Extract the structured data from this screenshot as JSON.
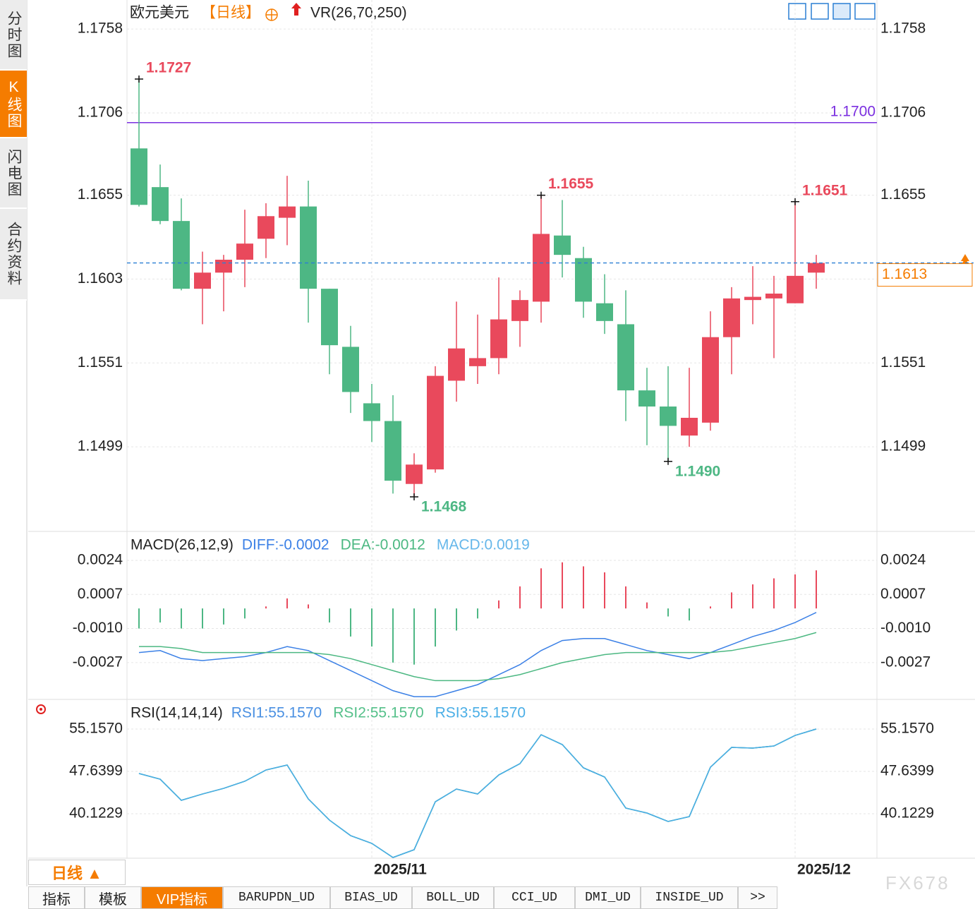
{
  "sidebar": [
    "分时图",
    "K线图",
    "闪电图",
    "合约资料"
  ],
  "header": {
    "symbol": "欧元美元",
    "period": "【日线】",
    "indicator": "VR(26,70,250)"
  },
  "chart_data": [
    {
      "type": "candlestick",
      "categories": [
        null,
        null,
        null,
        null,
        null,
        null,
        null,
        null,
        null,
        null,
        null,
        "2025/11",
        null,
        null,
        null,
        null,
        null,
        null,
        null,
        null,
        null,
        null,
        null,
        null,
        null,
        null,
        null,
        null,
        null,
        null,
        null,
        "2025/12",
        null
      ],
      "open": [
        1.1684,
        1.166,
        1.1639,
        1.1597,
        1.1607,
        1.1615,
        1.1628,
        1.1641,
        1.1648,
        1.1597,
        1.1561,
        1.1526,
        1.1515,
        1.1476,
        1.1485,
        1.154,
        1.1549,
        1.1554,
        1.1577,
        1.1589,
        1.163,
        1.1616,
        1.1588,
        1.1575,
        1.1534,
        1.1524,
        1.1506,
        1.1514,
        1.1567,
        1.159,
        1.1591,
        1.1588,
        1.1607
      ],
      "high": [
        1.1727,
        1.1674,
        1.1653,
        1.162,
        1.1618,
        1.1646,
        1.165,
        1.1667,
        1.1664,
        1.1597,
        1.1574,
        1.1538,
        1.1531,
        1.1495,
        1.1549,
        1.1589,
        1.1581,
        1.1604,
        1.1596,
        1.1655,
        1.1652,
        1.1623,
        1.1606,
        1.1596,
        1.1548,
        1.1549,
        1.1548,
        1.1583,
        1.1598,
        1.1611,
        1.1605,
        1.1651,
        1.1618
      ],
      "low": [
        1.1648,
        1.1637,
        1.1596,
        1.1575,
        1.1583,
        1.1598,
        1.1616,
        1.1624,
        1.1576,
        1.1544,
        1.152,
        1.1502,
        1.147,
        1.1468,
        1.1483,
        1.1527,
        1.1538,
        1.1544,
        1.1561,
        1.1576,
        1.1604,
        1.1579,
        1.1569,
        1.1515,
        1.15,
        1.149,
        1.1499,
        1.1509,
        1.1544,
        1.1575,
        1.1554,
        1.1588,
        1.1597
      ],
      "close": [
        1.1649,
        1.1639,
        1.1597,
        1.1607,
        1.1615,
        1.1625,
        1.1642,
        1.1648,
        1.1597,
        1.1562,
        1.1533,
        1.1515,
        1.1478,
        1.1488,
        1.1543,
        1.156,
        1.1554,
        1.1578,
        1.159,
        1.1631,
        1.1618,
        1.1589,
        1.1577,
        1.1534,
        1.1524,
        1.1512,
        1.1517,
        1.1567,
        1.1591,
        1.1592,
        1.1594,
        1.1605,
        1.1613
      ],
      "up_color": "#e9495c",
      "down_color": "#4db784",
      "ylim": [
        1.1447,
        1.1776
      ],
      "yticks": [
        1.1758,
        1.1706,
        1.1655,
        1.1603,
        1.1551,
        1.1499
      ],
      "reference_line": {
        "value": 1.17,
        "label": "1.1700",
        "color": "#7b2fe0"
      },
      "current_price": 1.1613,
      "high_labels": [
        1.1727,
        1.1655,
        1.1651
      ],
      "low_labels": [
        1.1468,
        {
          "value": 1.149,
          "label": "1.1490"
        }
      ]
    },
    {
      "type": "macd",
      "title": "MACD(26,12,9)",
      "histogram": {
        "name": "MACD:0.0019",
        "color": "#66b7ea",
        "values": [
          -0.001,
          -0.0007,
          -0.001,
          -0.001,
          -0.0008,
          -0.0005,
          0.0001,
          0.0005,
          0.0002,
          -0.0007,
          -0.0014,
          -0.0019,
          -0.0027,
          -0.0028,
          -0.0019,
          -0.0011,
          -0.0005,
          0.0004,
          0.0011,
          0.002,
          0.0023,
          0.0021,
          0.0018,
          0.0011,
          0.0003,
          -0.0004,
          -0.0006,
          0.0001,
          0.0008,
          0.0012,
          0.0015,
          0.0017,
          0.0019
        ]
      },
      "up_color": "#e9495c",
      "down_color": "#4db784",
      "series": [
        {
          "name": "DIFF:-0.0002",
          "color": "#3b80e6",
          "values": [
            -0.0022,
            -0.0021,
            -0.0025,
            -0.0026,
            -0.0025,
            -0.0024,
            -0.0022,
            -0.0019,
            -0.0021,
            -0.0026,
            -0.0031,
            -0.0036,
            -0.0041,
            -0.0044,
            -0.0044,
            -0.0041,
            -0.0038,
            -0.0033,
            -0.0028,
            -0.0021,
            -0.0016,
            -0.0015,
            -0.0015,
            -0.0018,
            -0.0021,
            -0.0023,
            -0.0025,
            -0.0022,
            -0.0018,
            -0.0014,
            -0.0011,
            -0.0007,
            -0.0002
          ]
        },
        {
          "name": "DEA:-0.0012",
          "color": "#4cb882",
          "values": [
            -0.0019,
            -0.0019,
            -0.002,
            -0.0022,
            -0.0022,
            -0.0022,
            -0.0022,
            -0.0022,
            -0.0022,
            -0.0023,
            -0.0025,
            -0.0028,
            -0.0031,
            -0.0034,
            -0.0036,
            -0.0036,
            -0.0036,
            -0.0035,
            -0.0033,
            -0.003,
            -0.0027,
            -0.0025,
            -0.0023,
            -0.0022,
            -0.0022,
            -0.0022,
            -0.0022,
            -0.0022,
            -0.0021,
            -0.0019,
            -0.0017,
            -0.0015,
            -0.0012
          ]
        }
      ],
      "ylim": [
        -0.0045,
        0.0037
      ],
      "yticks": [
        0.0024,
        0.0007,
        {
          "value": -0.001,
          "label": "-0.0010"
        },
        -0.0027
      ]
    },
    {
      "type": "rsi",
      "title": "RSI(14,14,14)",
      "series": [
        {
          "name": "RSI1:55.1570",
          "color": "#4a90e2",
          "values": [
            47.27,
            46.26,
            42.51,
            43.63,
            44.63,
            45.89,
            47.89,
            48.77,
            42.75,
            38.99,
            36.24,
            34.86,
            32.36,
            33.74,
            42.25,
            44.51,
            43.63,
            47.01,
            49.02,
            54.15,
            52.4,
            48.27,
            46.64,
            41.13,
            40.25,
            38.75,
            39.62,
            48.39,
            51.9,
            51.77,
            52.15,
            54.03,
            55.157
          ]
        },
        {
          "name": "RSI2:55.1570",
          "color": "#55c08a",
          "values": [
            47.27,
            46.26,
            42.51,
            43.63,
            44.63,
            45.89,
            47.89,
            48.77,
            42.75,
            38.99,
            36.24,
            34.86,
            32.36,
            33.74,
            42.25,
            44.51,
            43.63,
            47.01,
            49.02,
            54.15,
            52.4,
            48.27,
            46.64,
            41.13,
            40.25,
            38.75,
            39.62,
            48.39,
            51.9,
            51.77,
            52.15,
            54.03,
            55.157
          ]
        },
        {
          "name": "RSI3:55.1570",
          "color": "#4aaee6",
          "values": [
            47.27,
            46.26,
            42.51,
            43.63,
            44.63,
            45.89,
            47.89,
            48.77,
            42.75,
            38.99,
            36.24,
            34.86,
            32.36,
            33.74,
            42.25,
            44.51,
            43.63,
            47.01,
            49.02,
            54.15,
            52.4,
            48.27,
            46.64,
            41.13,
            40.25,
            38.75,
            39.62,
            48.39,
            51.9,
            51.77,
            52.15,
            54.03,
            55.157
          ]
        }
      ],
      "ylim": [
        32.36,
        59.92
      ],
      "yticks": [
        {
          "value": 55.157,
          "label": "55.1570"
        },
        47.6399,
        40.1229
      ]
    }
  ],
  "period_selector": "日线 ▲",
  "tabs": [
    "指标",
    "模板",
    "VIP指标",
    "BARUPDN_UD",
    "BIAS_UD",
    "BOLL_UD",
    "CCI_UD",
    "DMI_UD",
    "INSIDE_UD",
    ">>"
  ],
  "watermark": "FX678"
}
